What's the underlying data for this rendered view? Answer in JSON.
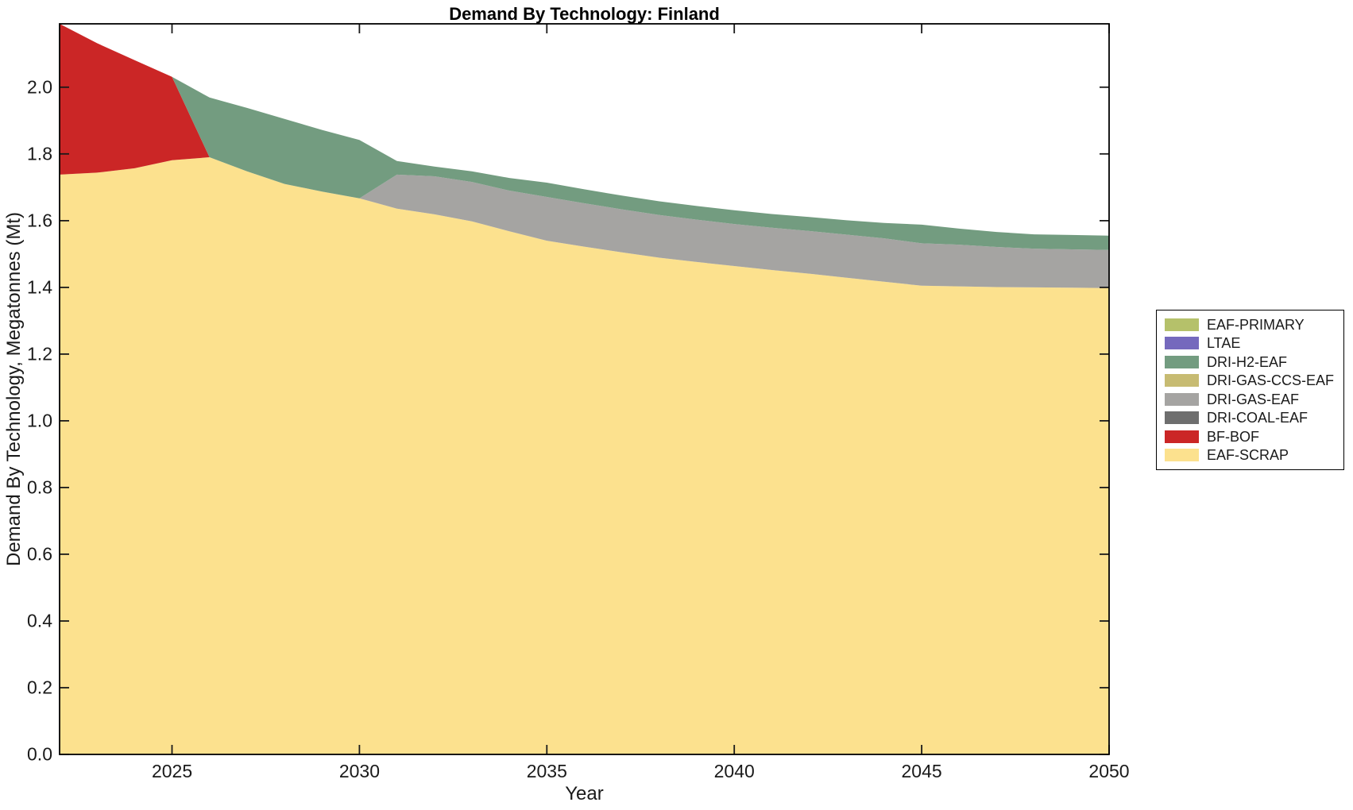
{
  "title": {
    "text": "Demand By Technology: Finland"
  },
  "axes": {
    "x_label": "Year",
    "y_label": "Demand By Technology, Megatonnes (Mt)",
    "x_ticks": [
      2025,
      2030,
      2035,
      2040,
      2045,
      2050
    ],
    "y_ticks": [
      "0.0",
      "0.2",
      "0.4",
      "0.6",
      "0.8",
      "1.0",
      "1.2",
      "1.4",
      "1.6",
      "1.8",
      "2.0"
    ]
  },
  "legend": {
    "position": "outside-right",
    "items": [
      "EAF-PRIMARY",
      "LTAE",
      "DRI-H2-EAF",
      "DRI-GAS-CCS-EAF",
      "DRI-GAS-EAF",
      "DRI-COAL-EAF",
      "BF-BOF",
      "EAF-SCRAP"
    ]
  },
  "chart_data": {
    "type": "area",
    "stacked": true,
    "title": "Demand By Technology: Finland",
    "xlabel": "Year",
    "ylabel": "Demand By Technology, Megatonnes (Mt)",
    "xlim": [
      2022,
      2050
    ],
    "ylim": [
      0,
      2.19
    ],
    "grid": false,
    "legend_position": "outside-right",
    "x": [
      2022,
      2023,
      2024,
      2025,
      2026,
      2027,
      2028,
      2029,
      2030,
      2031,
      2032,
      2033,
      2034,
      2035,
      2036,
      2037,
      2038,
      2039,
      2040,
      2041,
      2042,
      2043,
      2044,
      2045,
      2046,
      2047,
      2048,
      2049,
      2050
    ],
    "series": [
      {
        "name": "EAF-SCRAP",
        "color": "#fce18e",
        "values": [
          1.738,
          1.744,
          1.757,
          1.781,
          1.79,
          1.748,
          1.71,
          1.687,
          1.667,
          1.636,
          1.619,
          1.598,
          1.568,
          1.54,
          1.522,
          1.505,
          1.489,
          1.476,
          1.464,
          1.452,
          1.441,
          1.429,
          1.417,
          1.405,
          1.403,
          1.401,
          1.4,
          1.399,
          1.398
        ]
      },
      {
        "name": "BF-BOF",
        "color": "#cb2626",
        "values": [
          0.452,
          0.388,
          0.324,
          0.25,
          0,
          0,
          0,
          0,
          0,
          0,
          0,
          0,
          0,
          0,
          0,
          0,
          0,
          0,
          0,
          0,
          0,
          0,
          0,
          0,
          0,
          0,
          0,
          0,
          0
        ]
      },
      {
        "name": "DRI-COAL-EAF",
        "color": "#6e6e6e",
        "values": [
          0,
          0,
          0,
          0,
          0,
          0,
          0,
          0,
          0,
          0,
          0,
          0,
          0,
          0,
          0,
          0,
          0,
          0,
          0,
          0,
          0,
          0,
          0,
          0,
          0,
          0,
          0,
          0,
          0
        ]
      },
      {
        "name": "DRI-GAS-EAF",
        "color": "#a5a4a2",
        "values": [
          0,
          0,
          0,
          0,
          0,
          0,
          0,
          0,
          0,
          0.102,
          0.114,
          0.118,
          0.122,
          0.131,
          0.13,
          0.129,
          0.128,
          0.127,
          0.126,
          0.127,
          0.128,
          0.129,
          0.13,
          0.127,
          0.125,
          0.12,
          0.116,
          0.115,
          0.114
        ]
      },
      {
        "name": "DRI-GAS-CCS-EAF",
        "color": "#c7bb72",
        "values": [
          0,
          0,
          0,
          0,
          0,
          0,
          0,
          0,
          0,
          0,
          0,
          0,
          0,
          0,
          0,
          0,
          0,
          0,
          0,
          0,
          0,
          0,
          0,
          0,
          0,
          0,
          0,
          0,
          0
        ]
      },
      {
        "name": "DRI-H2-EAF",
        "color": "#739c80",
        "values": [
          0,
          0,
          0,
          0,
          0.179,
          0.19,
          0.195,
          0.185,
          0.175,
          0.041,
          0.029,
          0.032,
          0.038,
          0.043,
          0.042,
          0.041,
          0.041,
          0.041,
          0.041,
          0.041,
          0.042,
          0.043,
          0.046,
          0.056,
          0.048,
          0.045,
          0.043,
          0.043,
          0.043
        ]
      },
      {
        "name": "LTAE",
        "color": "#7569bd",
        "values": [
          0,
          0,
          0,
          0,
          0,
          0,
          0,
          0,
          0,
          0,
          0,
          0,
          0,
          0,
          0,
          0,
          0,
          0,
          0,
          0,
          0,
          0,
          0,
          0,
          0,
          0,
          0,
          0,
          0
        ]
      },
      {
        "name": "EAF-PRIMARY",
        "color": "#b5c16a",
        "values": [
          0,
          0,
          0,
          0,
          0,
          0,
          0,
          0,
          0,
          0,
          0,
          0,
          0,
          0,
          0,
          0,
          0,
          0,
          0,
          0,
          0,
          0,
          0,
          0,
          0,
          0,
          0,
          0,
          0
        ]
      }
    ]
  }
}
